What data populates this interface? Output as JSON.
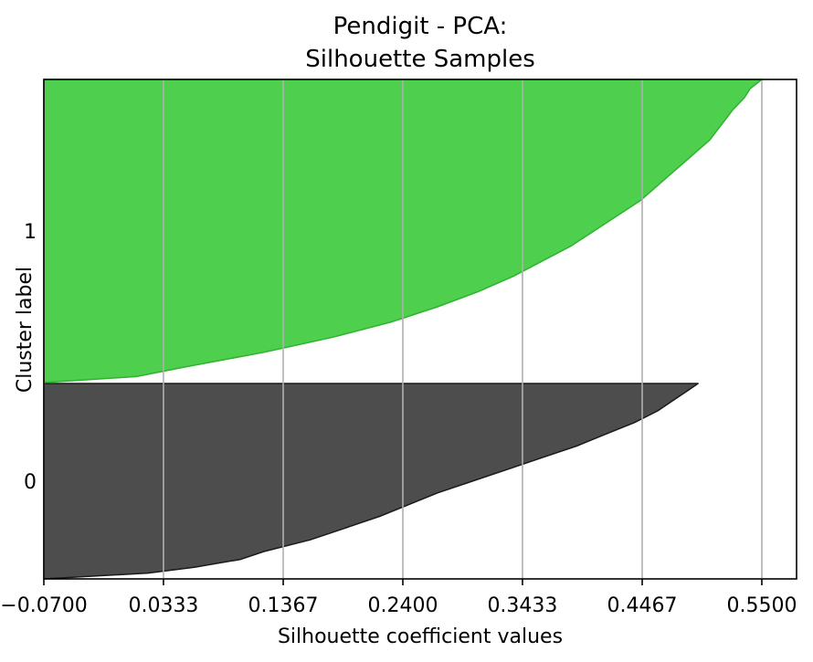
{
  "chart_data": {
    "type": "area",
    "title_lines": [
      "Pendigit - PCA:",
      "Silhouette Samples"
    ],
    "xlabel": "Silhouette coefficient values",
    "ylabel": "Cluster label",
    "xlim": [
      -0.07,
      0.58
    ],
    "x_ticks": [
      -0.07,
      0.0333,
      0.1367,
      0.24,
      0.3433,
      0.4467,
      0.55
    ],
    "x_tick_labels": [
      "−0.0700",
      "0.0333",
      "0.1367",
      "0.2400",
      "0.3433",
      "0.4467",
      "0.5500"
    ],
    "grid_x": true,
    "series": [
      {
        "label": "0",
        "color": "#4d4d4d",
        "edge_color": "#1a1a1a",
        "max_silhouette": 0.495,
        "profile": [
          [
            0.0,
            -0.07
          ],
          [
            0.03,
            0.02
          ],
          [
            0.06,
            0.06
          ],
          [
            0.1,
            0.1
          ],
          [
            0.14,
            0.12
          ],
          [
            0.2,
            0.16
          ],
          [
            0.26,
            0.19
          ],
          [
            0.32,
            0.22
          ],
          [
            0.38,
            0.245
          ],
          [
            0.44,
            0.27
          ],
          [
            0.5,
            0.3
          ],
          [
            0.56,
            0.33
          ],
          [
            0.62,
            0.36
          ],
          [
            0.68,
            0.39
          ],
          [
            0.74,
            0.415
          ],
          [
            0.8,
            0.44
          ],
          [
            0.86,
            0.46
          ],
          [
            0.92,
            0.475
          ],
          [
            0.96,
            0.485
          ],
          [
            1.0,
            0.495
          ]
        ]
      },
      {
        "label": "1",
        "color": "#4ecf4e",
        "edge_color": "#2fb32f",
        "max_silhouette": 0.55,
        "profile": [
          [
            0.0,
            -0.07
          ],
          [
            0.02,
            0.01
          ],
          [
            0.05,
            0.05
          ],
          [
            0.1,
            0.12
          ],
          [
            0.15,
            0.18
          ],
          [
            0.2,
            0.23
          ],
          [
            0.25,
            0.27
          ],
          [
            0.3,
            0.305
          ],
          [
            0.35,
            0.335
          ],
          [
            0.4,
            0.36
          ],
          [
            0.45,
            0.385
          ],
          [
            0.5,
            0.405
          ],
          [
            0.55,
            0.425
          ],
          [
            0.6,
            0.445
          ],
          [
            0.65,
            0.46
          ],
          [
            0.7,
            0.475
          ],
          [
            0.75,
            0.49
          ],
          [
            0.8,
            0.505
          ],
          [
            0.85,
            0.515
          ],
          [
            0.9,
            0.525
          ],
          [
            0.94,
            0.535
          ],
          [
            0.97,
            0.54
          ],
          [
            1.0,
            0.55
          ]
        ]
      }
    ]
  }
}
